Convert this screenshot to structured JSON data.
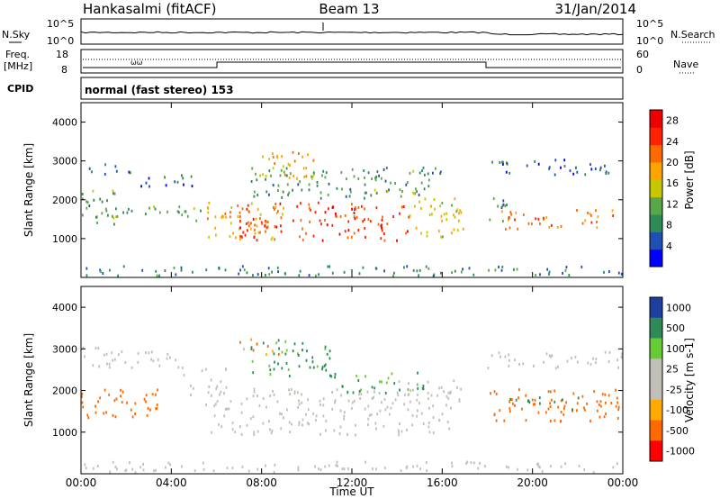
{
  "header": {
    "station": "Hankasalmi (fitACF)",
    "beam": "Beam 13",
    "date": "31/Jan/2014"
  },
  "nsky_panel": {
    "left_label": "N.Sky",
    "right_label": "N.Search",
    "tick_top": "10^5",
    "tick_bottom": "10^0"
  },
  "freq_panel": {
    "left_label_line1": "Freq.",
    "left_label_line2": "[MHz]",
    "right_label": "Nave",
    "left_ticks": [
      "18",
      "8"
    ],
    "right_ticks": [
      "60",
      "0"
    ]
  },
  "cpid_panel": {
    "label": "CPID",
    "value": "normal (fast stereo) 153"
  },
  "colors": {
    "power": [
      "#0000ff",
      "#1f4fb0",
      "#2e8b57",
      "#5aa64a",
      "#c8c800",
      "#ffa500",
      "#ff6a00",
      "#ff2200",
      "#ee0000"
    ],
    "velocity": [
      "#ff0000",
      "#ff6a00",
      "#ffaa00",
      "#c0c0b8",
      "#c0c0b8",
      "#66cc33",
      "#2e8b57",
      "#1f3fa0"
    ],
    "nsky_line": "#000000"
  },
  "chart_data": [
    {
      "type": "heatmap",
      "name": "power",
      "title": "",
      "ylabel": "Slant Range [km]",
      "xlabel": "",
      "ylim": [
        0,
        4500
      ],
      "xlim": [
        0,
        24
      ],
      "y_ticks": [
        1000,
        2000,
        3000,
        4000
      ],
      "colorbar": {
        "label": "Power [dB]",
        "ticks": [
          4,
          8,
          12,
          16,
          20,
          24,
          28
        ],
        "range": [
          0,
          30
        ]
      },
      "regions": [
        {
          "t": [
            0.0,
            1.6
          ],
          "r": [
            1300,
            2200
          ],
          "level": 10
        },
        {
          "t": [
            0.2,
            2.2
          ],
          "r": [
            2600,
            3000
          ],
          "level": 6
        },
        {
          "t": [
            1.0,
            5.5
          ],
          "r": [
            1400,
            1800
          ],
          "level": 10
        },
        {
          "t": [
            2.5,
            5.0
          ],
          "r": [
            2300,
            2600
          ],
          "level": 6
        },
        {
          "t": [
            5.5,
            9.0
          ],
          "r": [
            900,
            1900
          ],
          "level": 18
        },
        {
          "t": [
            7.0,
            14.5
          ],
          "r": [
            900,
            1900
          ],
          "level": 24
        },
        {
          "t": [
            14.5,
            17.0
          ],
          "r": [
            1000,
            2000
          ],
          "level": 16
        },
        {
          "t": [
            7.5,
            16.0
          ],
          "r": [
            2000,
            2800
          ],
          "level": 10
        },
        {
          "t": [
            8.0,
            10.5
          ],
          "r": [
            2500,
            3200
          ],
          "level": 18
        },
        {
          "t": [
            18.0,
            19.0
          ],
          "r": [
            1300,
            2000
          ],
          "level": 8
        },
        {
          "t": [
            18.5,
            23.8
          ],
          "r": [
            1200,
            1700
          ],
          "level": 22
        },
        {
          "t": [
            18.0,
            22.0
          ],
          "r": [
            2600,
            3000
          ],
          "level": 6
        },
        {
          "t": [
            21.5,
            24.0
          ],
          "r": [
            2600,
            2900
          ],
          "level": 6
        },
        {
          "t": [
            0.0,
            24.0
          ],
          "r": [
            0,
            250
          ],
          "level": 8
        }
      ]
    },
    {
      "type": "heatmap",
      "name": "velocity",
      "title": "",
      "ylabel": "Slant Range [km]",
      "xlabel": "Time UT",
      "ylim": [
        0,
        4500
      ],
      "xlim": [
        0,
        24
      ],
      "y_ticks": [
        1000,
        2000,
        3000,
        4000
      ],
      "x_ticks": [
        "00:00",
        "04:00",
        "08:00",
        "12:00",
        "16:00",
        "20:00",
        "00:00"
      ],
      "colorbar": {
        "label": "Velocity [m s-1]",
        "ticks": [
          "1000",
          "500",
          "100",
          "25",
          "-25",
          "-100",
          "-500",
          "-1000"
        ]
      },
      "regions": [
        {
          "t": [
            0.0,
            3.5
          ],
          "r": [
            1300,
            2000
          ],
          "vel": -300
        },
        {
          "t": [
            0.0,
            4.5
          ],
          "r": [
            2500,
            3000
          ],
          "vel": 0
        },
        {
          "t": [
            4.5,
            6.5
          ],
          "r": [
            1800,
            2500
          ],
          "vel": 0
        },
        {
          "t": [
            5.5,
            16.5
          ],
          "r": [
            900,
            2000
          ],
          "vel": 0
        },
        {
          "t": [
            14.0,
            17.0
          ],
          "r": [
            1700,
            2200
          ],
          "vel": 0
        },
        {
          "t": [
            7.5,
            11.0
          ],
          "r": [
            2300,
            3200
          ],
          "vel": 150
        },
        {
          "t": [
            7.0,
            9.0
          ],
          "r": [
            2800,
            3200
          ],
          "vel": -100
        },
        {
          "t": [
            11.0,
            15.5
          ],
          "r": [
            1900,
            2400
          ],
          "vel": 150
        },
        {
          "t": [
            18.0,
            23.8
          ],
          "r": [
            1200,
            2000
          ],
          "vel": -300
        },
        {
          "t": [
            18.5,
            22.0
          ],
          "r": [
            1500,
            1800
          ],
          "vel": 300
        },
        {
          "t": [
            18.0,
            24.0
          ],
          "r": [
            2500,
            2900
          ],
          "vel": 0
        },
        {
          "t": [
            0.0,
            24.0
          ],
          "r": [
            0,
            250
          ],
          "vel": 0
        }
      ]
    }
  ]
}
